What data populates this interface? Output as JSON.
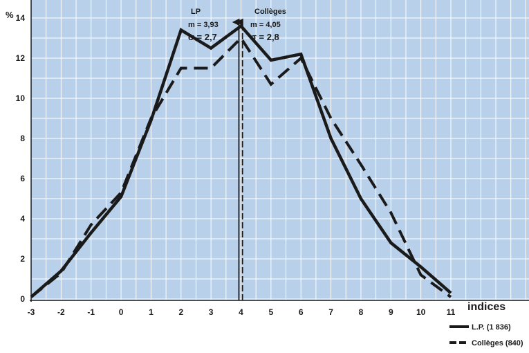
{
  "chart_data": {
    "type": "line",
    "title": "",
    "xlabel": "indices",
    "ylabel": "%",
    "xlim": [
      -3,
      11
    ],
    "ylim": [
      0,
      14
    ],
    "x_ticks": [
      -3,
      -2,
      -1,
      0,
      1,
      2,
      3,
      4,
      5,
      6,
      7,
      8,
      9,
      10,
      11
    ],
    "y_ticks": [
      0,
      2,
      4,
      6,
      8,
      10,
      12,
      14
    ],
    "grid": true,
    "background_color": "#b8d0ea",
    "grid_color": "#ffffff",
    "line_color": "#1a1a1a",
    "legend_position": "bottom-right",
    "series": [
      {
        "name": "L.P. (1 836)",
        "style": "solid",
        "x": [
          -3,
          -2,
          -1,
          0,
          1,
          2,
          3,
          4,
          5,
          6,
          7,
          8,
          9,
          10,
          11
        ],
        "values": [
          0.1,
          1.4,
          3.3,
          5.1,
          8.9,
          13.4,
          12.5,
          13.6,
          11.9,
          12.2,
          8.0,
          5.0,
          2.8,
          1.6,
          0.3
        ]
      },
      {
        "name": "Collèges (840)",
        "style": "dashed",
        "x": [
          -3,
          -2,
          -1,
          0,
          1,
          2,
          3,
          4,
          5,
          6,
          7,
          8,
          9,
          10,
          11
        ],
        "values": [
          0.1,
          1.3,
          3.7,
          5.3,
          9.0,
          11.5,
          11.5,
          13.0,
          10.7,
          12.0,
          9.0,
          6.7,
          4.3,
          1.2,
          0.1
        ]
      }
    ],
    "means": [
      {
        "series": "L.P. (1 836)",
        "style": "solid",
        "group_label": "LP",
        "mean_text": "m = 3,93",
        "sigma_text": "σ = 2,7",
        "value": 3.93
      },
      {
        "series": "Collèges (840)",
        "style": "dashed",
        "group_label": "Collèges",
        "mean_text": "m = 4,05",
        "sigma_text": "σ = 2,8",
        "value": 4.05
      }
    ]
  }
}
